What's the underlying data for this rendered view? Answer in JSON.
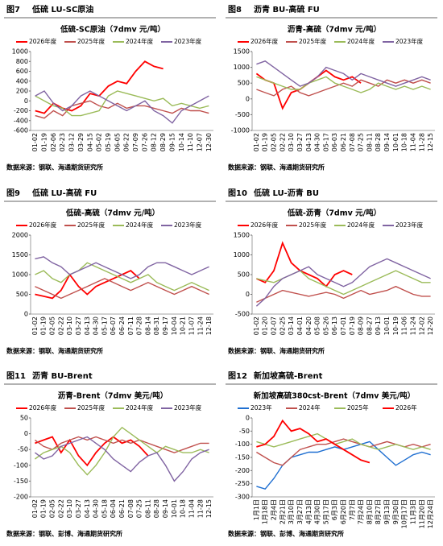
{
  "figures": [
    {
      "label": "图7",
      "title": "低硫 LU-SC原油",
      "source": "数据来源：钢联、海通期货研究所"
    },
    {
      "label": "图8",
      "title": "沥青 BU-高硫 FU",
      "source": "数据来源：钢联、海通期货研究所"
    },
    {
      "label": "图9",
      "title": "低硫 LU-高硫 FU",
      "source": "数据来源：钢联、海通期货研究所"
    },
    {
      "label": "图10",
      "title": "低硫 LU-沥青 BU",
      "source": "数据来源：钢联、海通期货研究所"
    },
    {
      "label": "图11",
      "title": "沥青 BU-Brent",
      "source": "数据来源：钢联、彭博、海通期货研究所"
    },
    {
      "label": "图12",
      "title": "新加坡高硫-Brent",
      "source": "数据来源：钢联、彭博、海通期货研究所"
    }
  ],
  "chart_data": [
    {
      "type": "line",
      "title": "低硫-SC原油（7dmv 元/吨）",
      "ylim": [
        -600,
        1000
      ],
      "yticks": [
        -600,
        -400,
        -200,
        0,
        200,
        400,
        600,
        800,
        1000
      ],
      "categories": [
        "01-02",
        "01-19",
        "02-06",
        "02-23",
        "03-12",
        "03-29",
        "04-15",
        "05-02",
        "05-19",
        "06-05",
        "06-22",
        "07-09",
        "07-26",
        "08-12",
        "08-29",
        "09-15",
        "10-14",
        "11-10",
        "12-07",
        "12-30"
      ],
      "series": [
        {
          "name": "2026年度",
          "color": "#ff0000",
          "values": [
            -200,
            -250,
            -50,
            -150,
            -200,
            -100,
            150,
            100,
            300,
            400,
            350,
            600,
            800,
            700,
            650,
            null,
            null,
            null,
            null,
            null
          ]
        },
        {
          "name": "2025年度",
          "color": "#c0504d",
          "values": [
            -300,
            -350,
            -200,
            -300,
            -100,
            -50,
            0,
            -100,
            -150,
            -50,
            -150,
            -100,
            -100,
            -150,
            -200,
            -250,
            -150,
            -200,
            -200,
            -250
          ]
        },
        {
          "name": "2024年度",
          "color": "#9bbb59",
          "values": [
            100,
            0,
            -100,
            -150,
            -300,
            -300,
            -250,
            -200,
            100,
            200,
            150,
            100,
            50,
            0,
            50,
            -100,
            -50,
            -100,
            -150,
            -100
          ]
        },
        {
          "name": "2023年度",
          "color": "#8064a2",
          "values": [
            100,
            200,
            -50,
            -200,
            -100,
            100,
            200,
            100,
            0,
            -100,
            -200,
            -100,
            0,
            -200,
            -300,
            -450,
            -200,
            -100,
            0,
            100
          ]
        }
      ]
    },
    {
      "type": "line",
      "title": "沥青-高硫（7dmv 元/吨）",
      "ylim": [
        -1000,
        1500
      ],
      "yticks": [
        -1000,
        -500,
        0,
        500,
        1000,
        1500
      ],
      "categories": [
        "01-02",
        "01-19",
        "02-05",
        "02-22",
        "03-10",
        "03-27",
        "04-13",
        "04-30",
        "05-17",
        "06-03",
        "06-21",
        "07-08",
        "07-25",
        "08-11",
        "08-28",
        "09-14",
        "10-01",
        "10-18",
        "11-04",
        "11-28",
        "12-15"
      ],
      "series": [
        {
          "name": "2026年度",
          "color": "#ff0000",
          "values": [
            800,
            600,
            500,
            -300,
            200,
            300,
            500,
            700,
            900,
            700,
            600,
            700,
            500,
            null,
            null,
            null,
            null,
            null,
            null,
            null,
            null
          ]
        },
        {
          "name": "2025年度",
          "color": "#c0504d",
          "values": [
            300,
            200,
            100,
            300,
            400,
            200,
            100,
            200,
            300,
            400,
            500,
            400,
            600,
            500,
            400,
            600,
            500,
            600,
            500,
            600,
            500
          ]
        },
        {
          "name": "2024年度",
          "color": "#9bbb59",
          "values": [
            700,
            600,
            500,
            400,
            300,
            300,
            500,
            600,
            700,
            500,
            400,
            300,
            200,
            300,
            500,
            400,
            300,
            400,
            300,
            400,
            300
          ]
        },
        {
          "name": "2023年度",
          "color": "#8064a2",
          "values": [
            1100,
            1200,
            1000,
            800,
            600,
            400,
            500,
            700,
            1000,
            900,
            800,
            600,
            800,
            700,
            600,
            500,
            400,
            500,
            600,
            700,
            600
          ]
        }
      ]
    },
    {
      "type": "line",
      "title": "低硫-高硫（7dmv 元/吨）",
      "ylim": [
        0,
        2000
      ],
      "yticks": [
        0,
        500,
        1000,
        1500,
        2000
      ],
      "categories": [
        "01-02",
        "01-19",
        "02-05",
        "02-22",
        "03-10",
        "03-27",
        "04-13",
        "04-30",
        "05-17",
        "06-07",
        "06-24",
        "07-11",
        "07-28",
        "08-14",
        "08-31",
        "09-17",
        "10-04",
        "10-21",
        "11-07",
        "11-24",
        "12-18"
      ],
      "series": [
        {
          "name": "2026年度",
          "color": "#ff0000",
          "values": [
            500,
            450,
            400,
            600,
            1000,
            700,
            500,
            700,
            800,
            900,
            1000,
            1100,
            900,
            null,
            null,
            null,
            null,
            null,
            null,
            null,
            null
          ]
        },
        {
          "name": "2025年度",
          "color": "#c0504d",
          "values": [
            700,
            600,
            500,
            400,
            500,
            600,
            700,
            800,
            900,
            800,
            700,
            600,
            700,
            800,
            700,
            600,
            500,
            600,
            700,
            600,
            500
          ]
        },
        {
          "name": "2024年度",
          "color": "#9bbb59",
          "values": [
            1000,
            1100,
            900,
            800,
            1000,
            1100,
            1300,
            1200,
            1100,
            1000,
            900,
            800,
            900,
            1000,
            800,
            700,
            600,
            700,
            800,
            700,
            600
          ]
        },
        {
          "name": "2023年度",
          "color": "#8064a2",
          "values": [
            1400,
            1450,
            1300,
            1200,
            1000,
            1100,
            1200,
            1300,
            1200,
            1100,
            1000,
            900,
            1000,
            1200,
            1300,
            1300,
            1200,
            1100,
            1000,
            1100,
            1200
          ]
        }
      ]
    },
    {
      "type": "line",
      "title": "低硫-沥青（7dmv 元/吨）",
      "ylim": [
        -500,
        1500
      ],
      "yticks": [
        -500,
        0,
        500,
        1000,
        1500
      ],
      "categories": [
        "01-02",
        "01-20",
        "02-07",
        "02-25",
        "03-14",
        "04-01",
        "04-20",
        "05-08",
        "05-26",
        "06-13",
        "07-01",
        "07-19",
        "08-09",
        "08-27",
        "09-13",
        "10-01",
        "10-19",
        "11-06",
        "11-24",
        "12-02",
        "12-20"
      ],
      "series": [
        {
          "name": "2026年度",
          "color": "#ff0000",
          "values": [
            400,
            300,
            600,
            1300,
            800,
            600,
            500,
            400,
            200,
            500,
            600,
            500,
            null,
            null,
            null,
            null,
            null,
            null,
            null,
            null,
            null
          ]
        },
        {
          "name": "2025年度",
          "color": "#c0504d",
          "values": [
            -200,
            -100,
            0,
            100,
            50,
            0,
            -50,
            0,
            50,
            0,
            -100,
            0,
            100,
            0,
            50,
            100,
            200,
            100,
            0,
            -50,
            -50
          ]
        },
        {
          "name": "2024年度",
          "color": "#9bbb59",
          "values": [
            400,
            350,
            300,
            400,
            500,
            600,
            400,
            300,
            200,
            100,
            0,
            100,
            200,
            300,
            400,
            500,
            600,
            500,
            400,
            300,
            300
          ]
        },
        {
          "name": "2023年度",
          "color": "#8064a2",
          "values": [
            -300,
            -100,
            200,
            400,
            500,
            600,
            700,
            500,
            400,
            300,
            200,
            300,
            500,
            700,
            800,
            900,
            800,
            700,
            600,
            500,
            400
          ]
        }
      ]
    },
    {
      "type": "line",
      "title": "沥青-Brent（7dmv 美元/吨）",
      "ylim": [
        -200,
        50
      ],
      "yticks": [
        -200,
        -150,
        -100,
        -50,
        0,
        50
      ],
      "categories": [
        "01-02",
        "01-19",
        "02-05",
        "02-22",
        "03-10",
        "03-27",
        "04-13",
        "04-30",
        "05-18",
        "06-04",
        "06-21",
        "07-08",
        "07-25",
        "08-11",
        "08-28",
        "09-14",
        "10-01",
        "10-18",
        "11-04",
        "11-28",
        "12-15"
      ],
      "series": [
        {
          "name": "2026年度",
          "color": "#ff0000",
          "values": [
            -30,
            -20,
            -10,
            -60,
            -20,
            -70,
            -100,
            -60,
            -30,
            -10,
            -30,
            -20,
            -40,
            -70,
            null,
            null,
            null,
            null,
            null,
            null,
            null
          ]
        },
        {
          "name": "2025年度",
          "color": "#c0504d",
          "values": [
            -20,
            -40,
            -50,
            -30,
            -20,
            -10,
            -20,
            -10,
            -20,
            -30,
            -20,
            -30,
            -20,
            -30,
            -40,
            -50,
            -60,
            -50,
            -40,
            -30,
            -30
          ]
        },
        {
          "name": "2024年度",
          "color": "#9bbb59",
          "values": [
            -80,
            -60,
            -50,
            -40,
            -60,
            -100,
            -130,
            -100,
            -60,
            -10,
            20,
            0,
            -20,
            -40,
            -60,
            -40,
            -50,
            -60,
            -60,
            -50,
            -60
          ]
        },
        {
          "name": "2023年度",
          "color": "#8064a2",
          "values": [
            -60,
            -80,
            -70,
            -40,
            -30,
            -20,
            -10,
            -30,
            -50,
            -80,
            -100,
            -120,
            -90,
            -70,
            -60,
            -100,
            -150,
            -120,
            -80,
            -60,
            -50
          ]
        }
      ]
    },
    {
      "type": "line",
      "title": "新加坡高硫380cst-Brent（7dmv 美元/吨）",
      "ylim": [
        -300,
        0
      ],
      "yticks": [
        -300,
        -250,
        -200,
        -150,
        -100,
        -50,
        0
      ],
      "categories": [
        "1月1日",
        "1月18日",
        "2月4日",
        "2月21日",
        "3月10日",
        "3月27日",
        "4月13日",
        "4月30日",
        "5月17日",
        "6月3日",
        "6月20日",
        "7月7日",
        "7月24日",
        "8月10日",
        "8月27日",
        "9月13日",
        "9月30日",
        "10月17日",
        "11月3日",
        "11月20日",
        "12月24日"
      ],
      "series": [
        {
          "name": "2023年",
          "color": "#1f6fd1",
          "values": [
            -260,
            -270,
            -230,
            -180,
            -150,
            -140,
            -130,
            -130,
            -120,
            -110,
            -120,
            -110,
            -100,
            -90,
            -120,
            -150,
            -180,
            -160,
            -140,
            -130,
            -140
          ]
        },
        {
          "name": "2024年",
          "color": "#c0504d",
          "values": [
            -130,
            -150,
            -170,
            -180,
            -150,
            -120,
            -110,
            -100,
            -100,
            -90,
            -80,
            -90,
            -100,
            -110,
            -100,
            -90,
            -100,
            -110,
            -100,
            -110,
            -100
          ]
        },
        {
          "name": "2025年",
          "color": "#9bbb59",
          "values": [
            -90,
            -100,
            -110,
            -100,
            -90,
            -80,
            -70,
            -60,
            -80,
            -100,
            -90,
            -80,
            -100,
            -110,
            -120,
            -110,
            -100,
            -110,
            -120,
            -110,
            -120
          ]
        },
        {
          "name": "2026年",
          "color": "#ff0000",
          "values": [
            -110,
            -100,
            -70,
            -10,
            -50,
            -40,
            -60,
            -90,
            -80,
            -100,
            -120,
            -140,
            -160,
            -170,
            null,
            null,
            null,
            null,
            null,
            null,
            null
          ]
        }
      ]
    }
  ]
}
